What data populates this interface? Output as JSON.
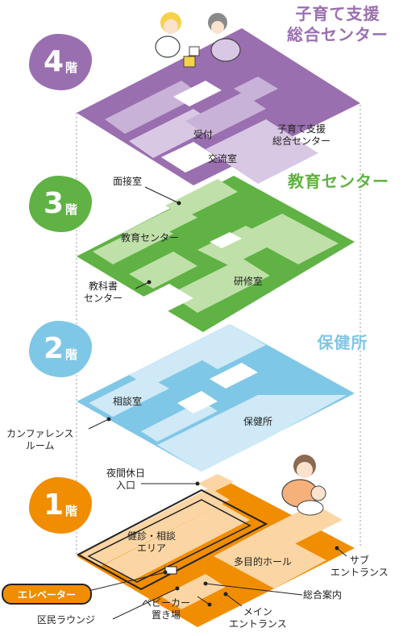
{
  "floors": [
    {
      "level": "4",
      "suffix": "階",
      "color": "#9a6fb0",
      "title": "子育て支援\n総合センター",
      "rooms": [
        "受付",
        "交流室",
        "子育て支援\n総合センター"
      ]
    },
    {
      "level": "3",
      "suffix": "階",
      "color": "#5fb243",
      "title": "教育センター",
      "rooms": [
        "面接室",
        "教育センター",
        "教科書\nセンター",
        "研修室"
      ]
    },
    {
      "level": "2",
      "suffix": "階",
      "color": "#7fc7e6",
      "title": "保健所",
      "rooms": [
        "相談室",
        "カンファレンス\nルーム",
        "保健所"
      ]
    },
    {
      "level": "1",
      "suffix": "階",
      "color": "#f18d00",
      "title": "",
      "rooms": [
        "夜間休日\n入口",
        "健診・相談\nエリア",
        "多目的ホール",
        "サブ\nエントランス",
        "総合案内",
        "メイン\nエントランス",
        "ベビーカー\n置き場",
        "区民ラウンジ"
      ]
    }
  ],
  "elevator_label": "エレベーター"
}
